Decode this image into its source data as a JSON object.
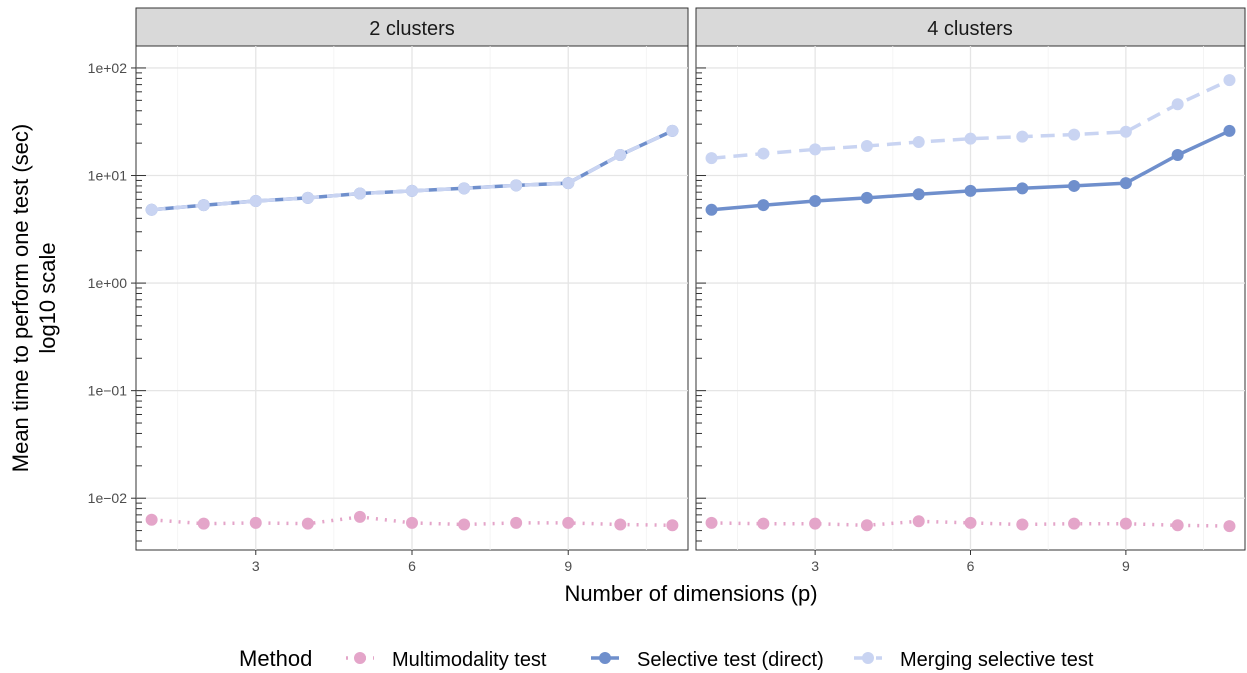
{
  "chart_data": {
    "type": "line",
    "ylabel_lines": [
      "Mean time to perform one test (sec)",
      "log10 scale"
    ],
    "xlabel": "Number of dimensions (p)",
    "y_scale": "log10",
    "ylim": [
      0.0033,
      160
    ],
    "xlim": [
      0.7,
      11.3
    ],
    "x_ticks": [
      3,
      6,
      9
    ],
    "y_ticks": [
      {
        "value": 0.01,
        "label": "1e−02"
      },
      {
        "value": 0.1,
        "label": "1e−01"
      },
      {
        "value": 1,
        "label": "1e+00"
      },
      {
        "value": 10,
        "label": "1e+01"
      },
      {
        "value": 100,
        "label": "1e+02"
      }
    ],
    "grid": true,
    "legend_position": "bottom",
    "legend_title": "Method",
    "x": [
      1,
      2,
      3,
      4,
      5,
      6,
      7,
      8,
      9,
      10,
      11
    ],
    "panels": [
      {
        "title": "2 clusters",
        "series": [
          {
            "name": "Multimodality test",
            "color": "#e4a5c9",
            "dash": "dotted",
            "values": [
              0.0063,
              0.0058,
              0.0059,
              0.0058,
              0.0067,
              0.0059,
              0.0057,
              0.0059,
              0.0059,
              0.0057,
              0.0056
            ]
          },
          {
            "name": "Selective test (direct)",
            "color": "#6f8fcc",
            "dash": "solid",
            "values": [
              4.8,
              5.3,
              5.8,
              6.2,
              6.8,
              7.2,
              7.6,
              8.1,
              8.5,
              15.5,
              26
            ]
          },
          {
            "name": "Merging selective test",
            "color": "#c9d4f2",
            "dash": "dashed",
            "values": [
              4.8,
              5.3,
              5.8,
              6.2,
              6.8,
              7.2,
              7.6,
              8.1,
              8.5,
              15.5,
              26
            ]
          }
        ]
      },
      {
        "title": "4 clusters",
        "series": [
          {
            "name": "Multimodality test",
            "color": "#e4a5c9",
            "dash": "dotted",
            "values": [
              0.0059,
              0.0058,
              0.0058,
              0.0056,
              0.0061,
              0.0059,
              0.0057,
              0.0058,
              0.0058,
              0.0056,
              0.0055
            ]
          },
          {
            "name": "Selective test (direct)",
            "color": "#6f8fcc",
            "dash": "solid",
            "values": [
              4.8,
              5.3,
              5.8,
              6.2,
              6.7,
              7.2,
              7.6,
              8.0,
              8.5,
              15.5,
              26
            ]
          },
          {
            "name": "Merging selective test",
            "color": "#c9d4f2",
            "dash": "dashed",
            "values": [
              14.5,
              16.0,
              17.5,
              18.8,
              20.5,
              22.0,
              23.0,
              24.0,
              25.5,
              46,
              77
            ]
          }
        ]
      }
    ]
  }
}
